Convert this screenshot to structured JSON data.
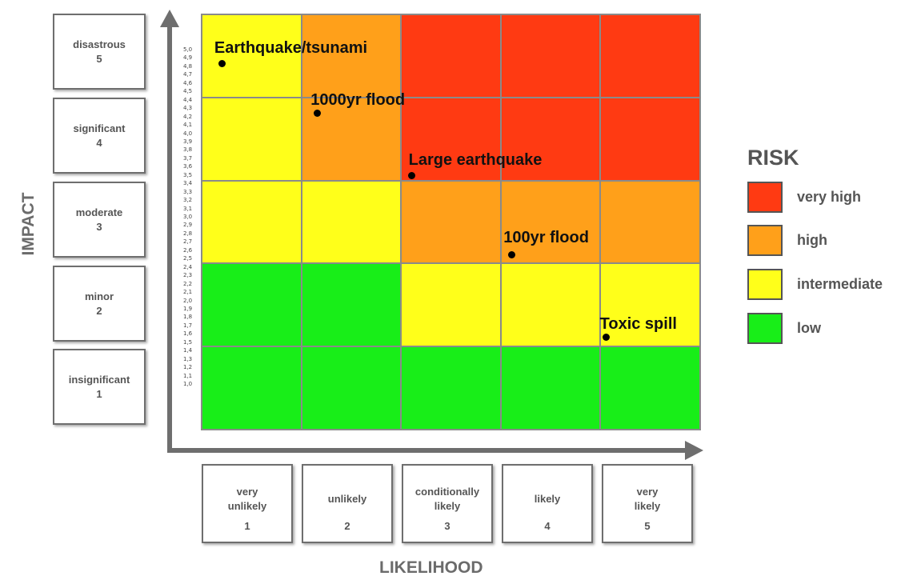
{
  "axes": {
    "y_title": "IMPACT",
    "x_title": "LIKELIHOOD"
  },
  "impact_levels": [
    {
      "label": "disastrous",
      "value": "5"
    },
    {
      "label": "significant",
      "value": "4"
    },
    {
      "label": "moderate",
      "value": "3"
    },
    {
      "label": "minor",
      "value": "2"
    },
    {
      "label": "insignificant",
      "value": "1"
    }
  ],
  "likelihood_levels": [
    {
      "label": "very\nunlikely",
      "value": "1"
    },
    {
      "label": "unlikely",
      "value": "2"
    },
    {
      "label": "conditionally\nlikely",
      "value": "3"
    },
    {
      "label": "likely",
      "value": "4"
    },
    {
      "label": "very\nlikely",
      "value": "5"
    }
  ],
  "impact_ticks": [
    "5,0",
    "4,9",
    "4,8",
    "4,7",
    "4,6",
    "4,5",
    "4,4",
    "4,3",
    "4,2",
    "4,1",
    "4,0",
    "3,9",
    "3,8",
    "3,7",
    "3,6",
    "3,5",
    "3,4",
    "3,3",
    "3,2",
    "3,1",
    "3,0",
    "2,9",
    "2,8",
    "2,7",
    "2,6",
    "2,5",
    "2,4",
    "2,3",
    "2,2",
    "2,1",
    "2,0",
    "1,9",
    "1,8",
    "1,7",
    "1,6",
    "1,5",
    "1,4",
    "1,3",
    "1,2",
    "1,1",
    "1,0"
  ],
  "risk_matrix": [
    [
      "intermediate",
      "high",
      "very high",
      "very high",
      "very high"
    ],
    [
      "intermediate",
      "high",
      "very high",
      "very high",
      "very high"
    ],
    [
      "intermediate",
      "intermediate",
      "high",
      "high",
      "high"
    ],
    [
      "low",
      "low",
      "intermediate",
      "intermediate",
      "intermediate"
    ],
    [
      "low",
      "low",
      "low",
      "low",
      "low"
    ]
  ],
  "risk_colors": {
    "very high": "#ff3a12",
    "high": "#ffa01a",
    "intermediate": "#ffff1a",
    "low": "#18ee18"
  },
  "legend": {
    "title": "RISK",
    "items": [
      {
        "label": "very high",
        "color": "#ff3a12"
      },
      {
        "label": "high",
        "color": "#ffa01a"
      },
      {
        "label": "intermediate",
        "color": "#ffff1a"
      },
      {
        "label": "low",
        "color": "#18ee18"
      }
    ]
  },
  "points": [
    {
      "label": "Earthquake/tsunami",
      "likelihood": 1.2,
      "impact": 4.9
    },
    {
      "label": "1000yr flood",
      "likelihood": 2.15,
      "impact": 4.3
    },
    {
      "label": "Large earthquake",
      "likelihood": 3.1,
      "impact": 3.55
    },
    {
      "label": "100yr flood",
      "likelihood": 4.1,
      "impact": 2.6
    },
    {
      "label": "Toxic spill",
      "likelihood": 5.05,
      "impact": 1.6
    }
  ]
}
